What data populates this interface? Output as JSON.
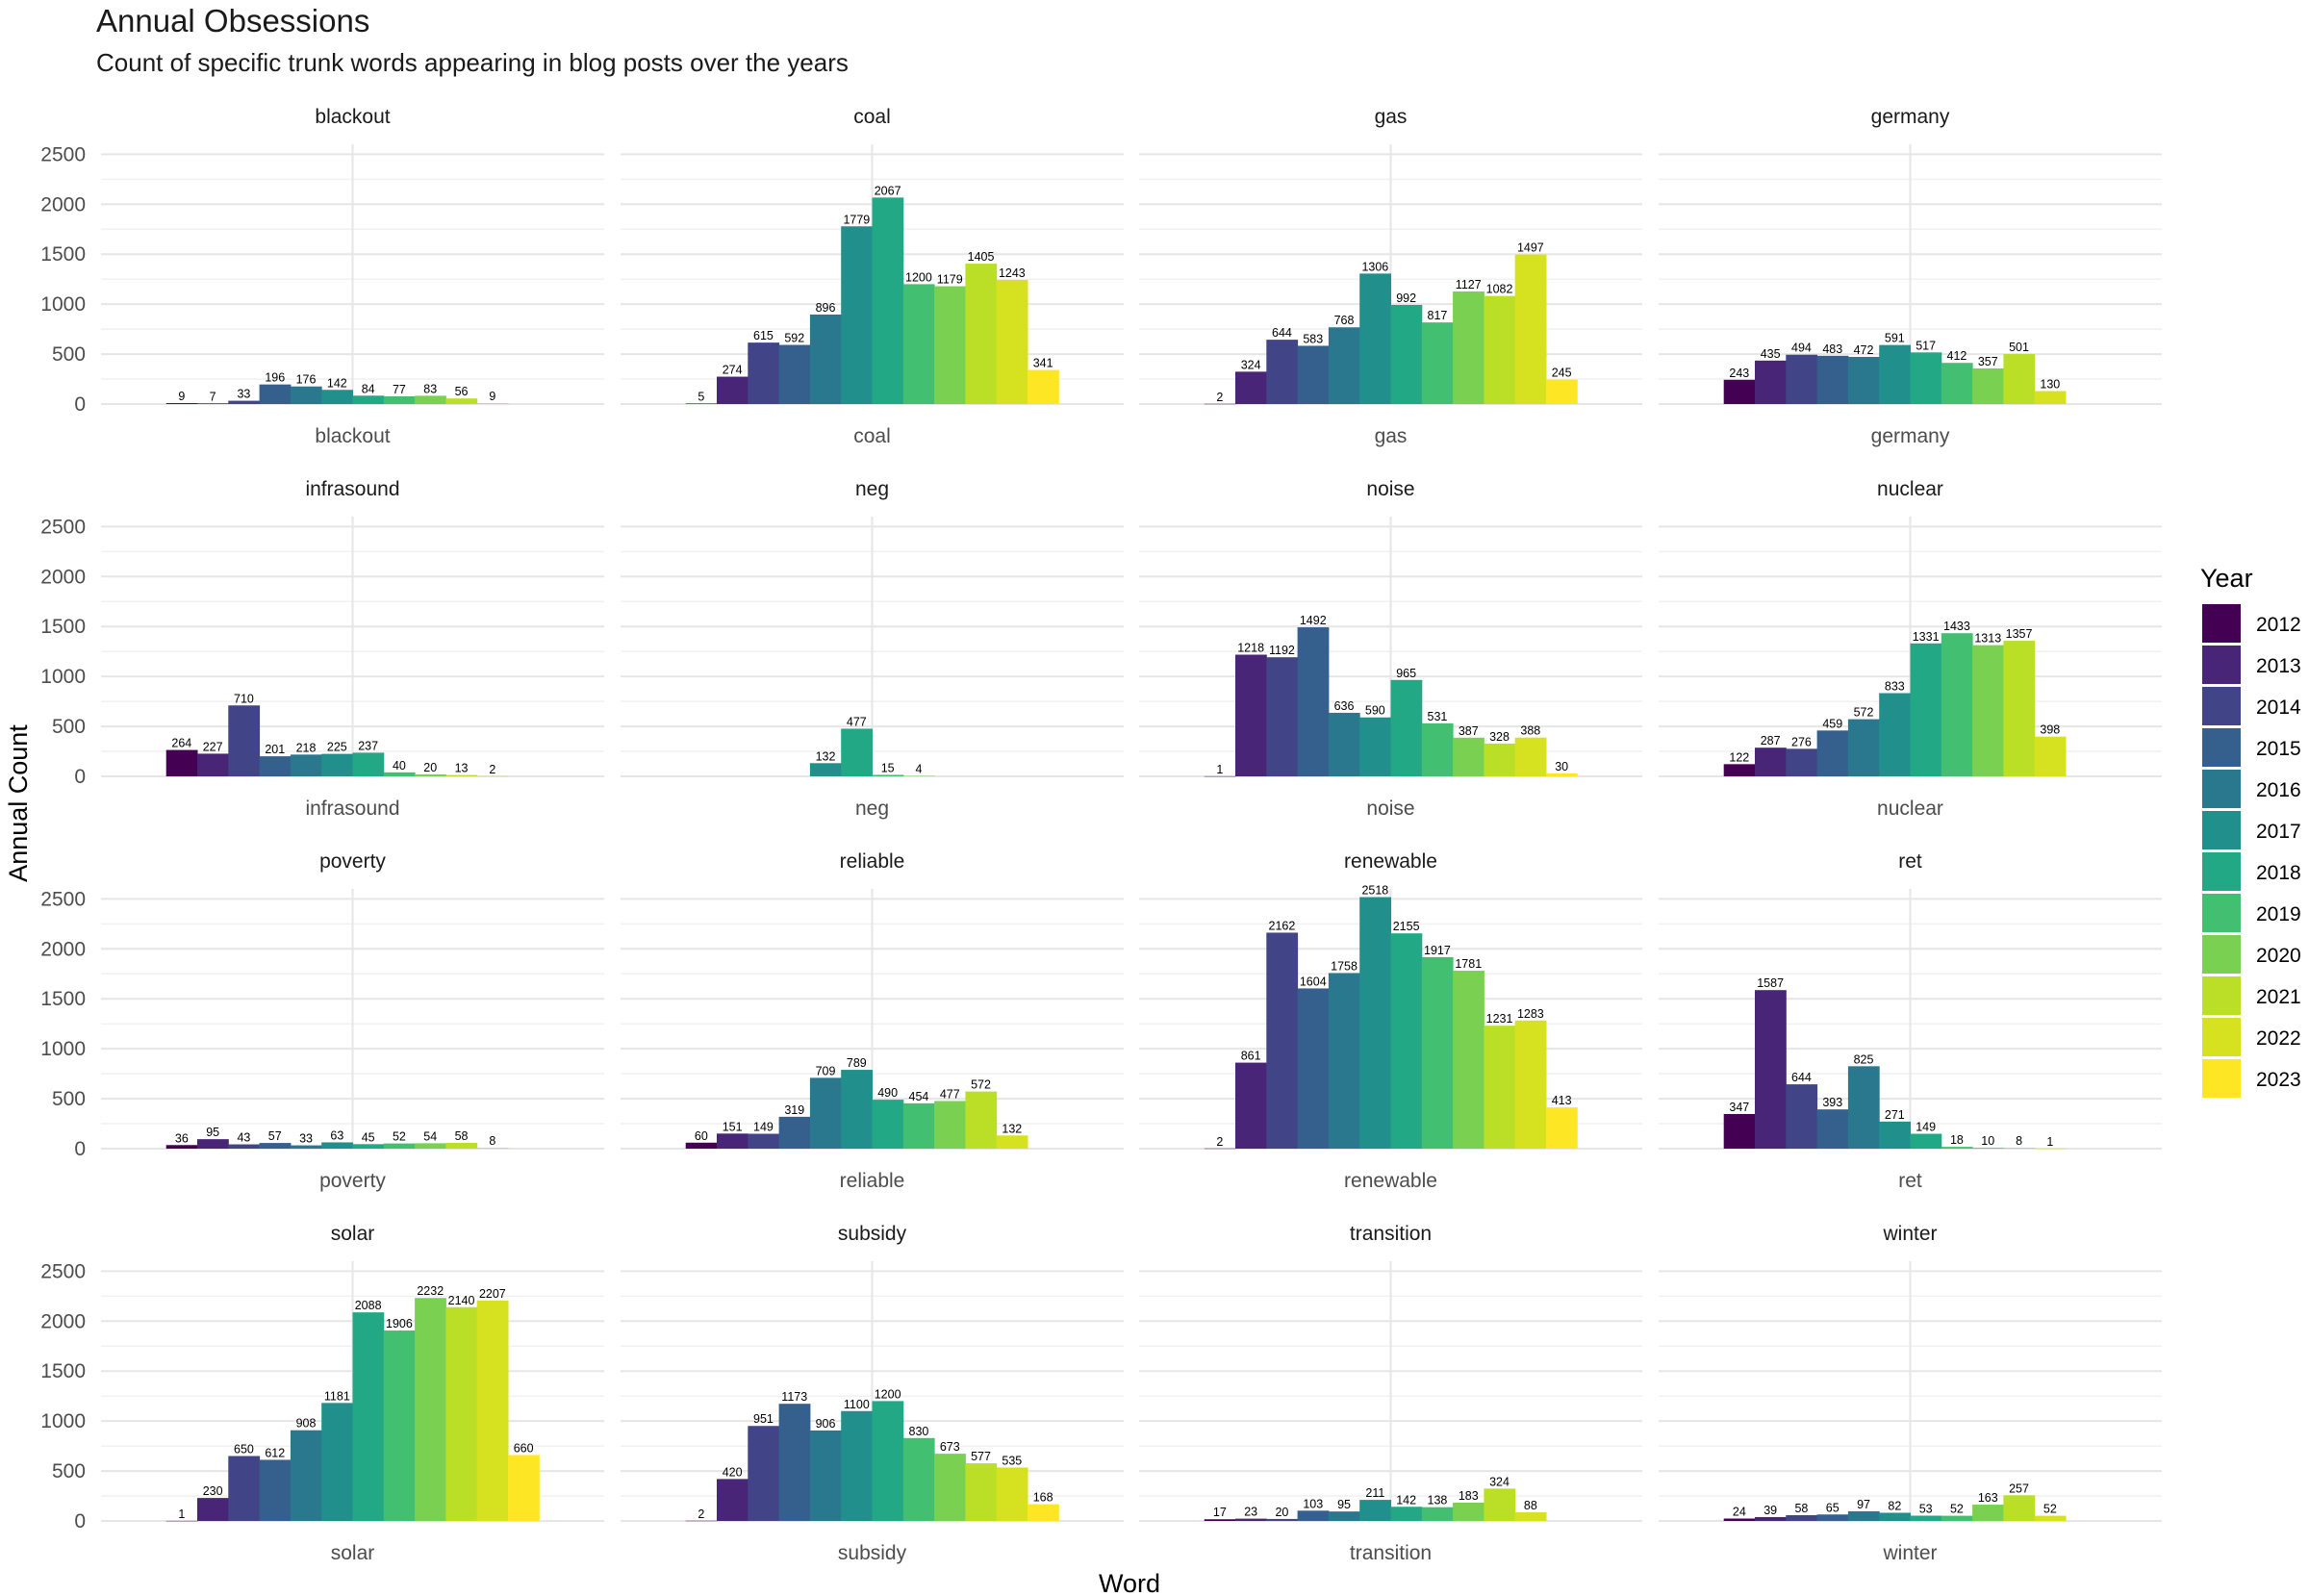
{
  "chart_data": {
    "type": "bar",
    "title": "Annual Obsessions",
    "subtitle": "Count of specific trunk words appearing in blog posts over the years",
    "xlabel": "Word",
    "ylabel": "Annual Count",
    "ylim": [
      0,
      2600
    ],
    "yticks": [
      0,
      500,
      1000,
      1500,
      2000,
      2500
    ],
    "grid": true,
    "legend": {
      "title": "Year",
      "position": "right",
      "entries": [
        "2012",
        "2013",
        "2014",
        "2015",
        "2016",
        "2017",
        "2018",
        "2019",
        "2020",
        "2021",
        "2022",
        "2023"
      ]
    },
    "colors": {
      "2012": "#440154",
      "2013": "#482576",
      "2014": "#414487",
      "2015": "#35608D",
      "2016": "#2A788E",
      "2017": "#21908C",
      "2018": "#22A884",
      "2019": "#43BF71",
      "2020": "#7AD151",
      "2021": "#BBDF27",
      "2022": "#D6E21F",
      "2023": "#FDE725"
    },
    "panels": [
      {
        "word": "blackout",
        "years": [
          "2012",
          "2013",
          "2014",
          "2015",
          "2016",
          "2017",
          "2018",
          "2019",
          "2020",
          "2021",
          "2022",
          "2023"
        ],
        "values": [
          9,
          7,
          33,
          196,
          176,
          142,
          84,
          77,
          83,
          56,
          9,
          null
        ]
      },
      {
        "word": "coal",
        "years": [
          "2012",
          "2013",
          "2014",
          "2015",
          "2016",
          "2017",
          "2018",
          "2019",
          "2020",
          "2021",
          "2022",
          "2023"
        ],
        "values": [
          5,
          274,
          615,
          592,
          896,
          1779,
          2067,
          1200,
          1179,
          1405,
          1243,
          341
        ]
      },
      {
        "word": "gas",
        "years": [
          "2012",
          "2013",
          "2014",
          "2015",
          "2016",
          "2017",
          "2018",
          "2019",
          "2020",
          "2021",
          "2022",
          "2023"
        ],
        "values": [
          2,
          324,
          644,
          583,
          768,
          1306,
          992,
          817,
          1127,
          1082,
          1497,
          245
        ]
      },
      {
        "word": "germany",
        "years": [
          "2012",
          "2013",
          "2014",
          "2015",
          "2016",
          "2017",
          "2018",
          "2019",
          "2020",
          "2021",
          "2022",
          "2023"
        ],
        "values": [
          243,
          435,
          494,
          483,
          472,
          591,
          517,
          412,
          357,
          501,
          130,
          null
        ]
      },
      {
        "word": "infrasound",
        "years": [
          "2012",
          "2013",
          "2014",
          "2015",
          "2016",
          "2017",
          "2018",
          "2019",
          "2020",
          "2021",
          "2022",
          "2023"
        ],
        "values": [
          264,
          227,
          710,
          201,
          218,
          225,
          237,
          40,
          20,
          13,
          2,
          null
        ]
      },
      {
        "word": "neg",
        "years": [
          "2017",
          "2018",
          "2019",
          "2020"
        ],
        "values": [
          132,
          477,
          15,
          4
        ]
      },
      {
        "word": "noise",
        "years": [
          "2012",
          "2013",
          "2014",
          "2015",
          "2016",
          "2017",
          "2018",
          "2019",
          "2020",
          "2021",
          "2022",
          "2023"
        ],
        "values": [
          1,
          1218,
          1192,
          1492,
          636,
          590,
          965,
          531,
          387,
          328,
          388,
          30
        ]
      },
      {
        "word": "nuclear",
        "years": [
          "2012",
          "2013",
          "2014",
          "2015",
          "2016",
          "2017",
          "2018",
          "2019",
          "2020",
          "2021",
          "2022",
          "2023"
        ],
        "values": [
          122,
          287,
          276,
          459,
          572,
          833,
          1331,
          1433,
          1313,
          1357,
          398,
          null
        ]
      },
      {
        "word": "poverty",
        "years": [
          "2012",
          "2013",
          "2014",
          "2015",
          "2016",
          "2017",
          "2018",
          "2019",
          "2020",
          "2021",
          "2022",
          "2023"
        ],
        "values": [
          36,
          95,
          43,
          57,
          33,
          63,
          45,
          52,
          54,
          58,
          8,
          null
        ]
      },
      {
        "word": "reliable",
        "years": [
          "2012",
          "2013",
          "2014",
          "2015",
          "2016",
          "2017",
          "2018",
          "2019",
          "2020",
          "2021",
          "2022",
          "2023"
        ],
        "values": [
          60,
          151,
          149,
          319,
          709,
          789,
          490,
          454,
          477,
          572,
          132,
          null
        ]
      },
      {
        "word": "renewable",
        "years": [
          "2012",
          "2013",
          "2014",
          "2015",
          "2016",
          "2017",
          "2018",
          "2019",
          "2020",
          "2021",
          "2022",
          "2023"
        ],
        "values": [
          2,
          861,
          2162,
          1604,
          1758,
          2518,
          2155,
          1917,
          1781,
          1231,
          1283,
          413
        ]
      },
      {
        "word": "ret",
        "years": [
          "2012",
          "2013",
          "2014",
          "2015",
          "2016",
          "2017",
          "2018",
          "2019",
          "2020",
          "2021",
          "2022",
          "2023"
        ],
        "values": [
          347,
          1587,
          644,
          393,
          825,
          271,
          149,
          18,
          10,
          8,
          1,
          null
        ]
      },
      {
        "word": "solar",
        "years": [
          "2012",
          "2013",
          "2014",
          "2015",
          "2016",
          "2017",
          "2018",
          "2019",
          "2020",
          "2021",
          "2022",
          "2023"
        ],
        "values": [
          1,
          230,
          650,
          612,
          908,
          1181,
          2088,
          1906,
          2232,
          2140,
          2207,
          660
        ]
      },
      {
        "word": "subsidy",
        "years": [
          "2012",
          "2013",
          "2014",
          "2015",
          "2016",
          "2017",
          "2018",
          "2019",
          "2020",
          "2021",
          "2022",
          "2023"
        ],
        "values": [
          2,
          420,
          951,
          1173,
          906,
          1100,
          1200,
          830,
          673,
          577,
          535,
          168
        ]
      },
      {
        "word": "transition",
        "years": [
          "2012",
          "2013",
          "2014",
          "2015",
          "2016",
          "2017",
          "2018",
          "2019",
          "2020",
          "2021",
          "2022",
          "2023"
        ],
        "values": [
          17,
          23,
          20,
          103,
          95,
          211,
          142,
          138,
          183,
          324,
          88,
          null
        ]
      },
      {
        "word": "winter",
        "years": [
          "2012",
          "2013",
          "2014",
          "2015",
          "2016",
          "2017",
          "2018",
          "2019",
          "2020",
          "2021",
          "2022",
          "2023"
        ],
        "values": [
          24,
          39,
          58,
          65,
          97,
          82,
          53,
          52,
          163,
          257,
          52,
          null
        ]
      }
    ]
  }
}
